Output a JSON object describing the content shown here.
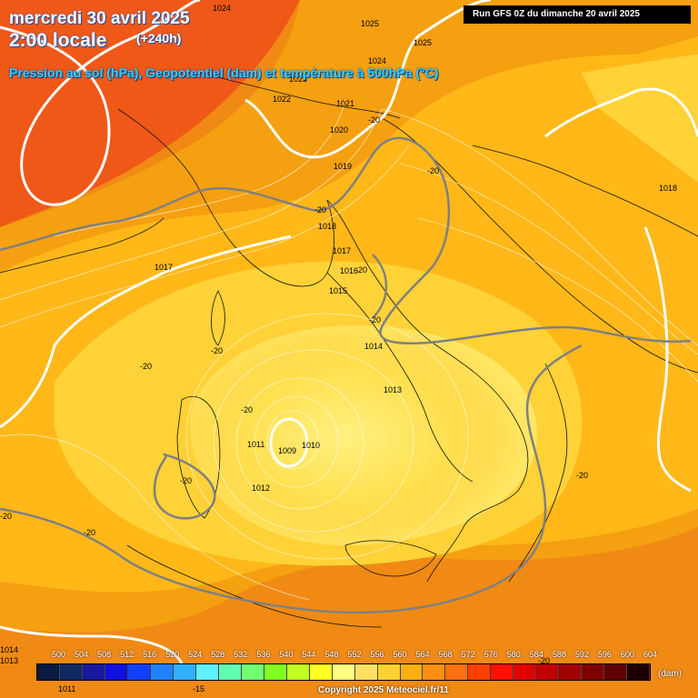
{
  "header": {
    "date": "mercredi 30 avril 2025",
    "local_time": "2:00 locale",
    "step": "(+240h)",
    "subtitle": "Pression au sol (hPa), Geopotentiel (dam) et température à 500hPa (°C)",
    "run": "Run GFS 0Z du dimanche 20 avril 2025"
  },
  "pressure_labels": [
    "1024",
    "1025",
    "1025",
    "1024",
    "1023",
    "1022",
    "1021",
    "1020",
    "1019",
    "1018",
    "1018",
    "1017",
    "1017",
    "1016",
    "1015",
    "1014",
    "1013",
    "1012",
    "1011",
    "1010",
    "1009",
    "1014",
    "1013",
    "1011"
  ],
  "temp_labels": [
    "-20",
    "-20",
    "-20",
    "-20",
    "-20",
    "-20",
    "-20",
    "-20",
    "-20",
    "-20",
    "-20",
    "-20",
    "-20",
    "-15"
  ],
  "legend": {
    "values": [
      "500",
      "504",
      "508",
      "512",
      "516",
      "520",
      "524",
      "528",
      "532",
      "536",
      "540",
      "544",
      "548",
      "552",
      "556",
      "560",
      "564",
      "568",
      "572",
      "576",
      "580",
      "584",
      "588",
      "592",
      "596",
      "600",
      "604"
    ],
    "colors": [
      "#0a1a40",
      "#102a60",
      "#1818a0",
      "#1010e0",
      "#1040ff",
      "#2080ff",
      "#30b0ff",
      "#60f0ff",
      "#60ffb0",
      "#70ff70",
      "#80ff20",
      "#c0ff20",
      "#ffff20",
      "#ffff80",
      "#ffe060",
      "#ffd030",
      "#ffb010",
      "#ff9010",
      "#ff7010",
      "#ff4000",
      "#ff1000",
      "#e00000",
      "#c00000",
      "#a00000",
      "#800000",
      "#600000",
      "#200000"
    ],
    "unit": "(dam)"
  },
  "copyright": "Copyright 2025 Meteociel.fr/11",
  "colors": {
    "background": "#f08010",
    "light_center": "#ffe870",
    "mid_yellow": "#ffc820",
    "orange": "#f59010",
    "dark_orange": "#f05010"
  }
}
